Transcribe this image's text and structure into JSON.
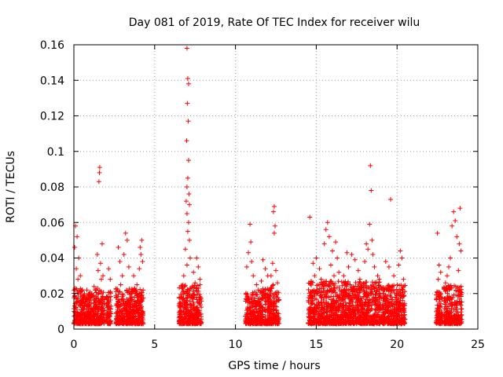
{
  "chart_data": {
    "type": "scatter",
    "title": "Day 081 of 2019, Rate Of TEC Index for receiver wilu",
    "xlabel": "GPS time / hours",
    "ylabel": "ROTI / TECUs",
    "xlim": [
      0,
      25
    ],
    "ylim": [
      0,
      0.16
    ],
    "grid": true,
    "marker": "+",
    "color": "#ff0000",
    "x_ticks": [
      {
        "value": 0,
        "label": "0"
      },
      {
        "value": 5,
        "label": "5"
      },
      {
        "value": 10,
        "label": "10"
      },
      {
        "value": 15,
        "label": "15"
      },
      {
        "value": 20,
        "label": "20"
      },
      {
        "value": 25,
        "label": "25"
      }
    ],
    "y_ticks": [
      {
        "value": 0,
        "label": "0"
      },
      {
        "value": 0.02,
        "label": "0.02"
      },
      {
        "value": 0.04,
        "label": "0.04"
      },
      {
        "value": 0.06,
        "label": "0.06"
      },
      {
        "value": 0.08,
        "label": "0.08"
      },
      {
        "value": 0.1,
        "label": "0.1"
      },
      {
        "value": 0.12,
        "label": "0.12"
      },
      {
        "value": 0.14,
        "label": "0.14"
      },
      {
        "value": 0.16,
        "label": "0.16"
      }
    ],
    "clusters": [
      {
        "x_start": 0.0,
        "x_end": 0.55,
        "base_max": 0.02,
        "peaks": [
          [
            0.1,
            0.058
          ],
          [
            0.2,
            0.052
          ],
          [
            0.05,
            0.046
          ],
          [
            0.3,
            0.04
          ],
          [
            0.15,
            0.034
          ],
          [
            0.4,
            0.03
          ],
          [
            0.25,
            0.028
          ],
          [
            0.5,
            0.022
          ]
        ]
      },
      {
        "x_start": 0.55,
        "x_end": 1.3,
        "base_max": 0.018,
        "peaks": [
          [
            0.8,
            0.022
          ],
          [
            1.1,
            0.02
          ],
          [
            1.25,
            0.024
          ]
        ]
      },
      {
        "x_start": 1.3,
        "x_end": 1.9,
        "base_max": 0.02,
        "peaks": [
          [
            1.6,
            0.091
          ],
          [
            1.58,
            0.088
          ],
          [
            1.55,
            0.083
          ],
          [
            1.75,
            0.048
          ],
          [
            1.45,
            0.042
          ],
          [
            1.65,
            0.037
          ],
          [
            1.5,
            0.033
          ],
          [
            1.8,
            0.03
          ],
          [
            1.7,
            0.028
          ]
        ]
      },
      {
        "x_start": 2.0,
        "x_end": 2.3,
        "base_max": 0.02,
        "peaks": [
          [
            2.15,
            0.034
          ],
          [
            2.25,
            0.028
          ]
        ]
      },
      {
        "x_start": 2.6,
        "x_end": 3.5,
        "base_max": 0.02,
        "peaks": [
          [
            2.75,
            0.046
          ],
          [
            2.85,
            0.038
          ],
          [
            3.2,
            0.054
          ],
          [
            3.3,
            0.05
          ],
          [
            3.1,
            0.042
          ],
          [
            3.4,
            0.035
          ],
          [
            3.0,
            0.03
          ],
          [
            2.9,
            0.025
          ]
        ]
      },
      {
        "x_start": 3.5,
        "x_end": 4.3,
        "base_max": 0.02,
        "peaks": [
          [
            4.2,
            0.05
          ],
          [
            4.1,
            0.046
          ],
          [
            4.15,
            0.042
          ],
          [
            4.25,
            0.038
          ],
          [
            4.05,
            0.034
          ],
          [
            3.7,
            0.03
          ],
          [
            3.9,
            0.025
          ]
        ]
      },
      {
        "x_start": 6.5,
        "x_end": 7.2,
        "base_max": 0.022,
        "peaks": [
          [
            7.0,
            0.158
          ],
          [
            7.05,
            0.141
          ],
          [
            7.1,
            0.138
          ],
          [
            7.02,
            0.127
          ],
          [
            7.08,
            0.117
          ],
          [
            6.98,
            0.106
          ],
          [
            7.1,
            0.095
          ],
          [
            7.05,
            0.085
          ],
          [
            7.0,
            0.08
          ],
          [
            7.12,
            0.076
          ],
          [
            6.95,
            0.072
          ],
          [
            7.15,
            0.07
          ],
          [
            7.0,
            0.065
          ],
          [
            7.1,
            0.06
          ],
          [
            7.05,
            0.055
          ],
          [
            7.15,
            0.05
          ],
          [
            6.9,
            0.045
          ],
          [
            7.2,
            0.04
          ],
          [
            7.0,
            0.036
          ],
          [
            6.8,
            0.03
          ]
        ]
      },
      {
        "x_start": 7.2,
        "x_end": 7.9,
        "base_max": 0.022,
        "peaks": [
          [
            7.6,
            0.04
          ],
          [
            7.7,
            0.035
          ],
          [
            7.4,
            0.032
          ],
          [
            7.8,
            0.028
          ],
          [
            7.5,
            0.026
          ]
        ]
      },
      {
        "x_start": 10.6,
        "x_end": 11.5,
        "base_max": 0.018,
        "peaks": [
          [
            10.9,
            0.059
          ],
          [
            10.95,
            0.049
          ],
          [
            10.8,
            0.043
          ],
          [
            11.0,
            0.038
          ],
          [
            10.7,
            0.035
          ],
          [
            11.1,
            0.03
          ],
          [
            11.3,
            0.025
          ],
          [
            11.4,
            0.022
          ]
        ]
      },
      {
        "x_start": 11.5,
        "x_end": 12.1,
        "base_max": 0.02,
        "peaks": [
          [
            11.7,
            0.039
          ],
          [
            11.85,
            0.034
          ],
          [
            12.0,
            0.03
          ],
          [
            11.6,
            0.027
          ]
        ]
      },
      {
        "x_start": 12.1,
        "x_end": 12.7,
        "base_max": 0.022,
        "peaks": [
          [
            12.4,
            0.069
          ],
          [
            12.35,
            0.066
          ],
          [
            12.45,
            0.058
          ],
          [
            12.4,
            0.054
          ],
          [
            12.3,
            0.037
          ],
          [
            12.5,
            0.033
          ],
          [
            12.2,
            0.03
          ],
          [
            12.6,
            0.026
          ]
        ]
      },
      {
        "x_start": 14.5,
        "x_end": 15.4,
        "base_max": 0.024,
        "peaks": [
          [
            14.6,
            0.063
          ],
          [
            15.0,
            0.04
          ],
          [
            14.8,
            0.037
          ],
          [
            15.2,
            0.034
          ],
          [
            14.9,
            0.03
          ],
          [
            15.3,
            0.028
          ]
        ]
      },
      {
        "x_start": 15.4,
        "x_end": 16.5,
        "base_max": 0.024,
        "peaks": [
          [
            15.7,
            0.06
          ],
          [
            15.6,
            0.056
          ],
          [
            15.8,
            0.052
          ],
          [
            15.5,
            0.048
          ],
          [
            16.2,
            0.049
          ],
          [
            16.0,
            0.044
          ],
          [
            16.3,
            0.04
          ],
          [
            15.9,
            0.036
          ],
          [
            16.4,
            0.032
          ],
          [
            16.1,
            0.03
          ]
        ]
      },
      {
        "x_start": 16.5,
        "x_end": 17.8,
        "base_max": 0.024,
        "peaks": [
          [
            16.9,
            0.043
          ],
          [
            17.2,
            0.042
          ],
          [
            17.4,
            0.039
          ],
          [
            17.0,
            0.035
          ],
          [
            17.6,
            0.033
          ],
          [
            16.7,
            0.03
          ],
          [
            17.7,
            0.028
          ]
        ]
      },
      {
        "x_start": 17.8,
        "x_end": 19.0,
        "base_max": 0.024,
        "peaks": [
          [
            18.35,
            0.092
          ],
          [
            18.4,
            0.078
          ],
          [
            18.3,
            0.059
          ],
          [
            18.45,
            0.05
          ],
          [
            18.1,
            0.048
          ],
          [
            18.2,
            0.045
          ],
          [
            18.5,
            0.042
          ],
          [
            18.0,
            0.038
          ],
          [
            18.6,
            0.035
          ],
          [
            18.8,
            0.03
          ],
          [
            18.9,
            0.028
          ]
        ]
      },
      {
        "x_start": 19.0,
        "x_end": 20.5,
        "base_max": 0.022,
        "peaks": [
          [
            19.6,
            0.073
          ],
          [
            19.3,
            0.038
          ],
          [
            19.5,
            0.035
          ],
          [
            20.2,
            0.044
          ],
          [
            20.3,
            0.04
          ],
          [
            20.1,
            0.036
          ],
          [
            19.8,
            0.03
          ],
          [
            20.4,
            0.028
          ]
        ]
      },
      {
        "x_start": 22.4,
        "x_end": 22.8,
        "base_max": 0.018,
        "peaks": [
          [
            22.5,
            0.054
          ],
          [
            22.6,
            0.036
          ],
          [
            22.7,
            0.032
          ],
          [
            22.55,
            0.028
          ]
        ]
      },
      {
        "x_start": 22.9,
        "x_end": 24.0,
        "base_max": 0.022,
        "peaks": [
          [
            23.5,
            0.066
          ],
          [
            23.6,
            0.061
          ],
          [
            23.9,
            0.068
          ],
          [
            23.4,
            0.058
          ],
          [
            23.7,
            0.052
          ],
          [
            23.85,
            0.048
          ],
          [
            23.95,
            0.044
          ],
          [
            23.3,
            0.04
          ],
          [
            23.2,
            0.035
          ],
          [
            23.8,
            0.033
          ],
          [
            23.1,
            0.03
          ],
          [
            23.0,
            0.026
          ]
        ]
      }
    ]
  }
}
